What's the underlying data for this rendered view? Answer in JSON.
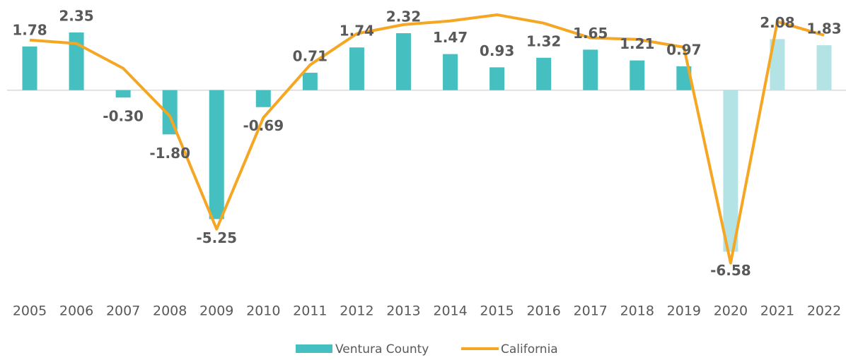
{
  "chart_data": {
    "type": "bar_line",
    "categories": [
      "2005",
      "2006",
      "2007",
      "2008",
      "2009",
      "2010",
      "2011",
      "2012",
      "2013",
      "2014",
      "2015",
      "2016",
      "2017",
      "2018",
      "2019",
      "2020",
      "2021",
      "2022"
    ],
    "series": [
      {
        "name": "Ventura County",
        "type": "bar",
        "color": "#45bfbf",
        "colors": [
          "#45bfbf",
          "#45bfbf",
          "#45bfbf",
          "#45bfbf",
          "#45bfbf",
          "#45bfbf",
          "#45bfbf",
          "#45bfbf",
          "#45bfbf",
          "#45bfbf",
          "#45bfbf",
          "#45bfbf",
          "#45bfbf",
          "#45bfbf",
          "#45bfbf",
          "#b3e3e5",
          "#b3e3e5",
          "#b3e3e5"
        ],
        "values": [
          1.78,
          2.35,
          -0.3,
          -1.8,
          -5.25,
          -0.69,
          0.71,
          1.74,
          2.32,
          1.47,
          0.93,
          1.32,
          1.65,
          1.21,
          0.97,
          -6.58,
          2.08,
          1.83
        ],
        "value_labels": [
          "1.78",
          "2.35",
          "-0.30",
          "-1.80",
          "-5.25",
          "-0.69",
          "0.71",
          "1.74",
          "2.32",
          "1.47",
          "0.93",
          "1.32",
          "1.65",
          "1.21",
          "0.97",
          "-6.58",
          "2.08",
          "1.83"
        ]
      },
      {
        "name": "California",
        "type": "line",
        "color": "#f5a623",
        "values": [
          2.04,
          1.9,
          0.89,
          -1.06,
          -5.66,
          -1.12,
          1.03,
          2.3,
          2.67,
          2.82,
          3.07,
          2.73,
          2.13,
          2.07,
          1.75,
          -7.04,
          2.79,
          2.24
        ]
      }
    ],
    "ylim": [
      -8,
      3.5
    ],
    "legend": "bottom"
  }
}
